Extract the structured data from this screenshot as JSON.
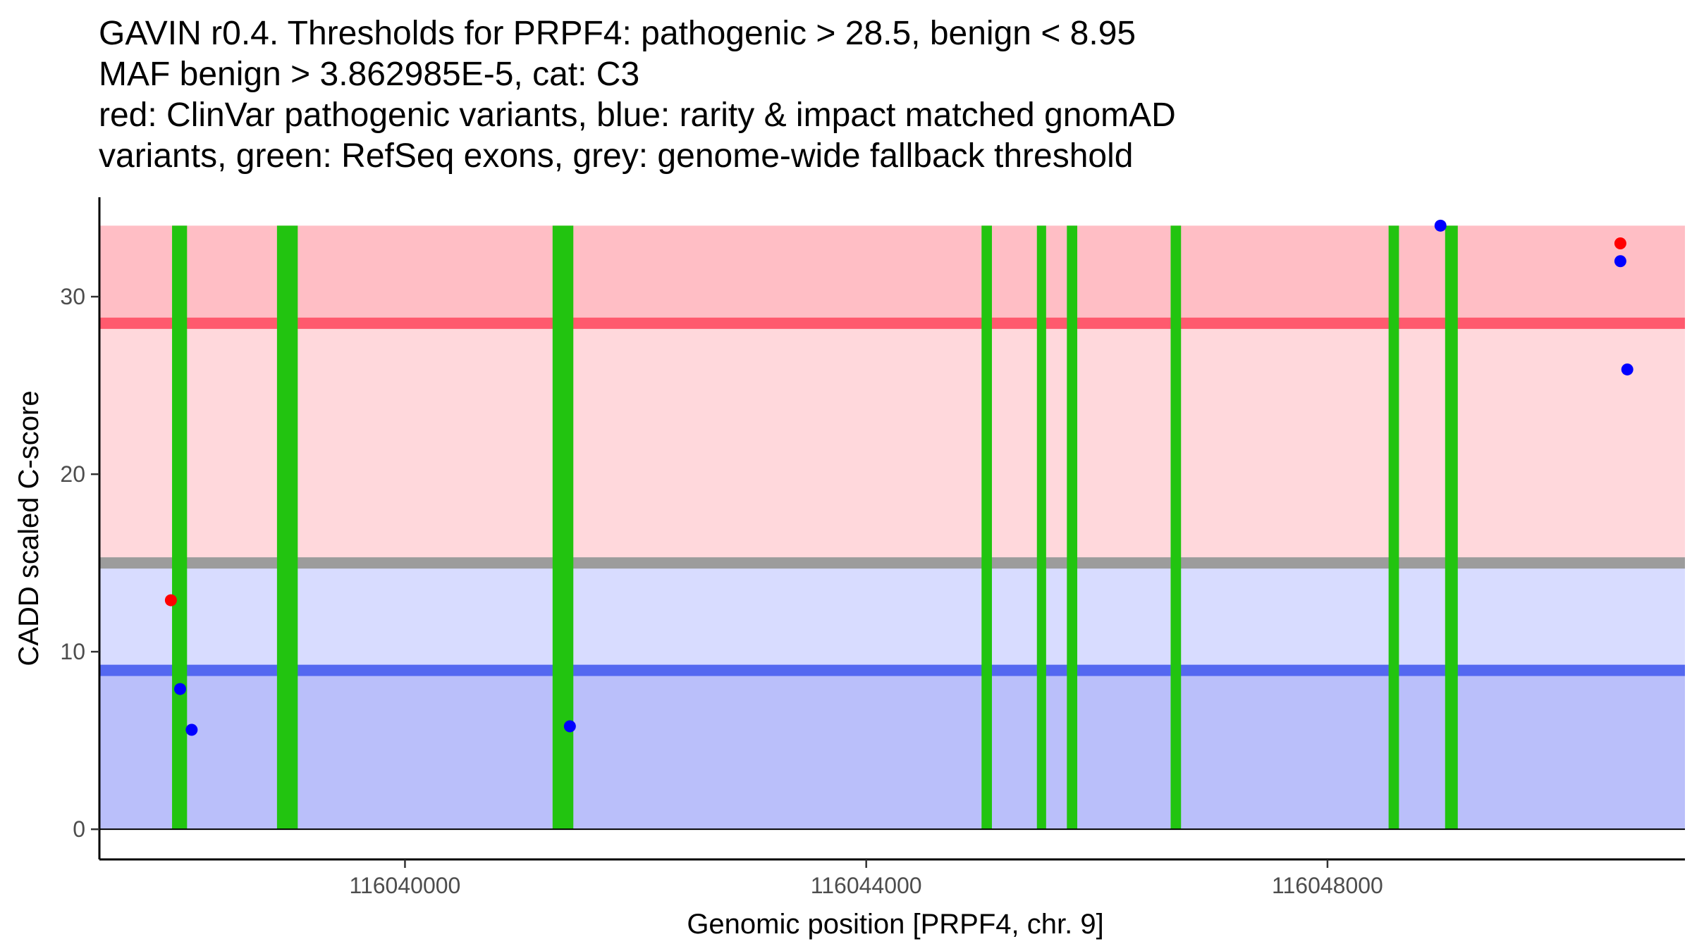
{
  "chart_data": {
    "type": "scatter",
    "title_lines": [
      "GAVIN r0.4. Thresholds for PRPF4: pathogenic > 28.5, benign < 8.95",
      "MAF benign > 3.862985E-5, cat: C3",
      "red: ClinVar pathogenic variants, blue: rarity & impact matched gnomAD",
      "variants, green: RefSeq exons, grey: genome-wide fallback threshold"
    ],
    "xlabel": "Genomic position [PRPF4, chr. 9]",
    "ylabel": "CADD scaled C-score",
    "xlim": [
      116037350,
      116051100
    ],
    "ylim": [
      -1.7,
      35.6
    ],
    "x_ticks": [
      116040000,
      116044000,
      116048000
    ],
    "x_tick_labels": [
      "116040000",
      "116044000",
      "116048000"
    ],
    "y_ticks": [
      0,
      10,
      20,
      30
    ],
    "y_tick_labels": [
      "0",
      "10",
      "20",
      "30"
    ],
    "grid": false,
    "regions": [
      {
        "name": "pathogenic-zone",
        "y0": 28.5,
        "y1": 34,
        "color": "#ffbec5"
      },
      {
        "name": "moderate-upper-zone",
        "y0": 15,
        "y1": 28.5,
        "color": "#ffd8dc"
      },
      {
        "name": "moderate-lower-zone",
        "y0": 8.95,
        "y1": 15,
        "color": "#d8dcff"
      },
      {
        "name": "benign-zone",
        "y0": 0,
        "y1": 8.95,
        "color": "#babffa"
      }
    ],
    "threshold_lines": [
      {
        "name": "pathogenic-threshold",
        "y": 28.5,
        "color": "#ff5a6e"
      },
      {
        "name": "fallback-threshold",
        "y": 15,
        "color": "#9c9c9c"
      },
      {
        "name": "benign-threshold",
        "y": 8.95,
        "color": "#5468f0"
      }
    ],
    "exons": [
      {
        "start": 116037980,
        "end": 116038110
      },
      {
        "start": 116038890,
        "end": 116039070
      },
      {
        "start": 116041280,
        "end": 116041460
      },
      {
        "start": 116045000,
        "end": 116045090
      },
      {
        "start": 116045480,
        "end": 116045560
      },
      {
        "start": 116045740,
        "end": 116045830
      },
      {
        "start": 116046640,
        "end": 116046730
      },
      {
        "start": 116048530,
        "end": 116048620
      },
      {
        "start": 116049020,
        "end": 116049130
      }
    ],
    "exon_color": "#22c410",
    "series": [
      {
        "name": "ClinVar pathogenic variants",
        "color": "#ff0000",
        "points": [
          [
            116037970,
            12.9
          ],
          [
            116050540,
            33.0
          ]
        ]
      },
      {
        "name": "gnomAD matched variants",
        "color": "#0000ff",
        "points": [
          [
            116038050,
            7.9
          ],
          [
            116038150,
            5.6
          ],
          [
            116041430,
            5.8
          ],
          [
            116048980,
            34.0
          ],
          [
            116050540,
            32.0
          ],
          [
            116050600,
            25.9
          ]
        ]
      }
    ]
  }
}
